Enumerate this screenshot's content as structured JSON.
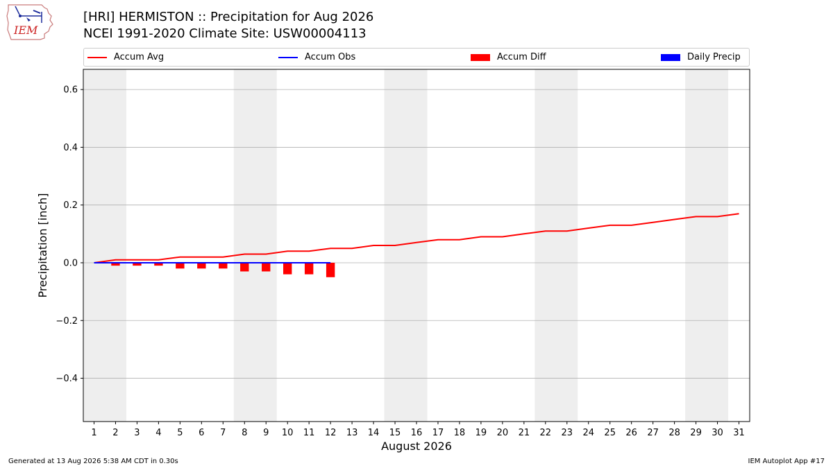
{
  "header": {
    "logo_text": "IEM",
    "title_line1": "[HRI] HERMISTON :: Precipitation for Aug 2026",
    "title_line2": "NCEI 1991-2020 Climate Site: USW00004113"
  },
  "colors": {
    "accum_avg": "#ff0000",
    "accum_obs": "#0000ff",
    "accum_diff": "#ff0000",
    "daily_precip": "#0000ff",
    "weekend_shade": "#eeeeee",
    "grid": "#b0b0b0"
  },
  "chart_data": {
    "type": "line",
    "xlabel": "August 2026",
    "ylabel": "Precipitation [inch]",
    "xlim": [
      0.5,
      31.5
    ],
    "ylim": [
      -0.55,
      0.67
    ],
    "yticks": [
      -0.4,
      -0.2,
      0.0,
      0.2,
      0.4,
      0.6
    ],
    "ytick_labels": [
      "−0.4",
      "−0.2",
      "0.0",
      "0.2",
      "0.4",
      "0.6"
    ],
    "xticks": [
      1,
      2,
      3,
      4,
      5,
      6,
      7,
      8,
      9,
      10,
      11,
      12,
      13,
      14,
      15,
      16,
      17,
      18,
      19,
      20,
      21,
      22,
      23,
      24,
      25,
      26,
      27,
      28,
      29,
      30,
      31
    ],
    "grid": "horizontal",
    "legend_position": "top",
    "weekend_spans": [
      [
        1,
        2
      ],
      [
        8,
        9
      ],
      [
        15,
        16
      ],
      [
        22,
        23
      ],
      [
        29,
        30
      ]
    ],
    "series": [
      {
        "name": "Accum Avg",
        "kind": "line",
        "x": [
          1,
          2,
          3,
          4,
          5,
          6,
          7,
          8,
          9,
          10,
          11,
          12,
          13,
          14,
          15,
          16,
          17,
          18,
          19,
          20,
          21,
          22,
          23,
          24,
          25,
          26,
          27,
          28,
          29,
          30,
          31
        ],
        "values": [
          0.0,
          0.01,
          0.01,
          0.01,
          0.02,
          0.02,
          0.02,
          0.03,
          0.03,
          0.04,
          0.04,
          0.05,
          0.05,
          0.06,
          0.06,
          0.07,
          0.08,
          0.08,
          0.09,
          0.09,
          0.1,
          0.11,
          0.11,
          0.12,
          0.13,
          0.13,
          0.14,
          0.15,
          0.16,
          0.16,
          0.17
        ]
      },
      {
        "name": "Accum Obs",
        "kind": "line",
        "x": [
          1,
          2,
          3,
          4,
          5,
          6,
          7,
          8,
          9,
          10,
          11,
          12
        ],
        "values": [
          0,
          0,
          0,
          0,
          0,
          0,
          0,
          0,
          0,
          0,
          0,
          0
        ]
      },
      {
        "name": "Accum Diff",
        "kind": "bar",
        "x": [
          1,
          2,
          3,
          4,
          5,
          6,
          7,
          8,
          9,
          10,
          11,
          12
        ],
        "values": [
          0.0,
          -0.01,
          -0.01,
          -0.01,
          -0.02,
          -0.02,
          -0.02,
          -0.03,
          -0.03,
          -0.04,
          -0.04,
          -0.05
        ]
      },
      {
        "name": "Daily Precip",
        "kind": "bar",
        "x": [
          1,
          2,
          3,
          4,
          5,
          6,
          7,
          8,
          9,
          10,
          11,
          12
        ],
        "values": [
          0,
          0,
          0,
          0,
          0,
          0,
          0,
          0,
          0,
          0,
          0,
          0
        ]
      }
    ]
  },
  "footer": {
    "generated": "Generated at 13 Aug 2026 5:38 AM CDT in 0.30s",
    "app": "IEM Autoplot App #17"
  }
}
